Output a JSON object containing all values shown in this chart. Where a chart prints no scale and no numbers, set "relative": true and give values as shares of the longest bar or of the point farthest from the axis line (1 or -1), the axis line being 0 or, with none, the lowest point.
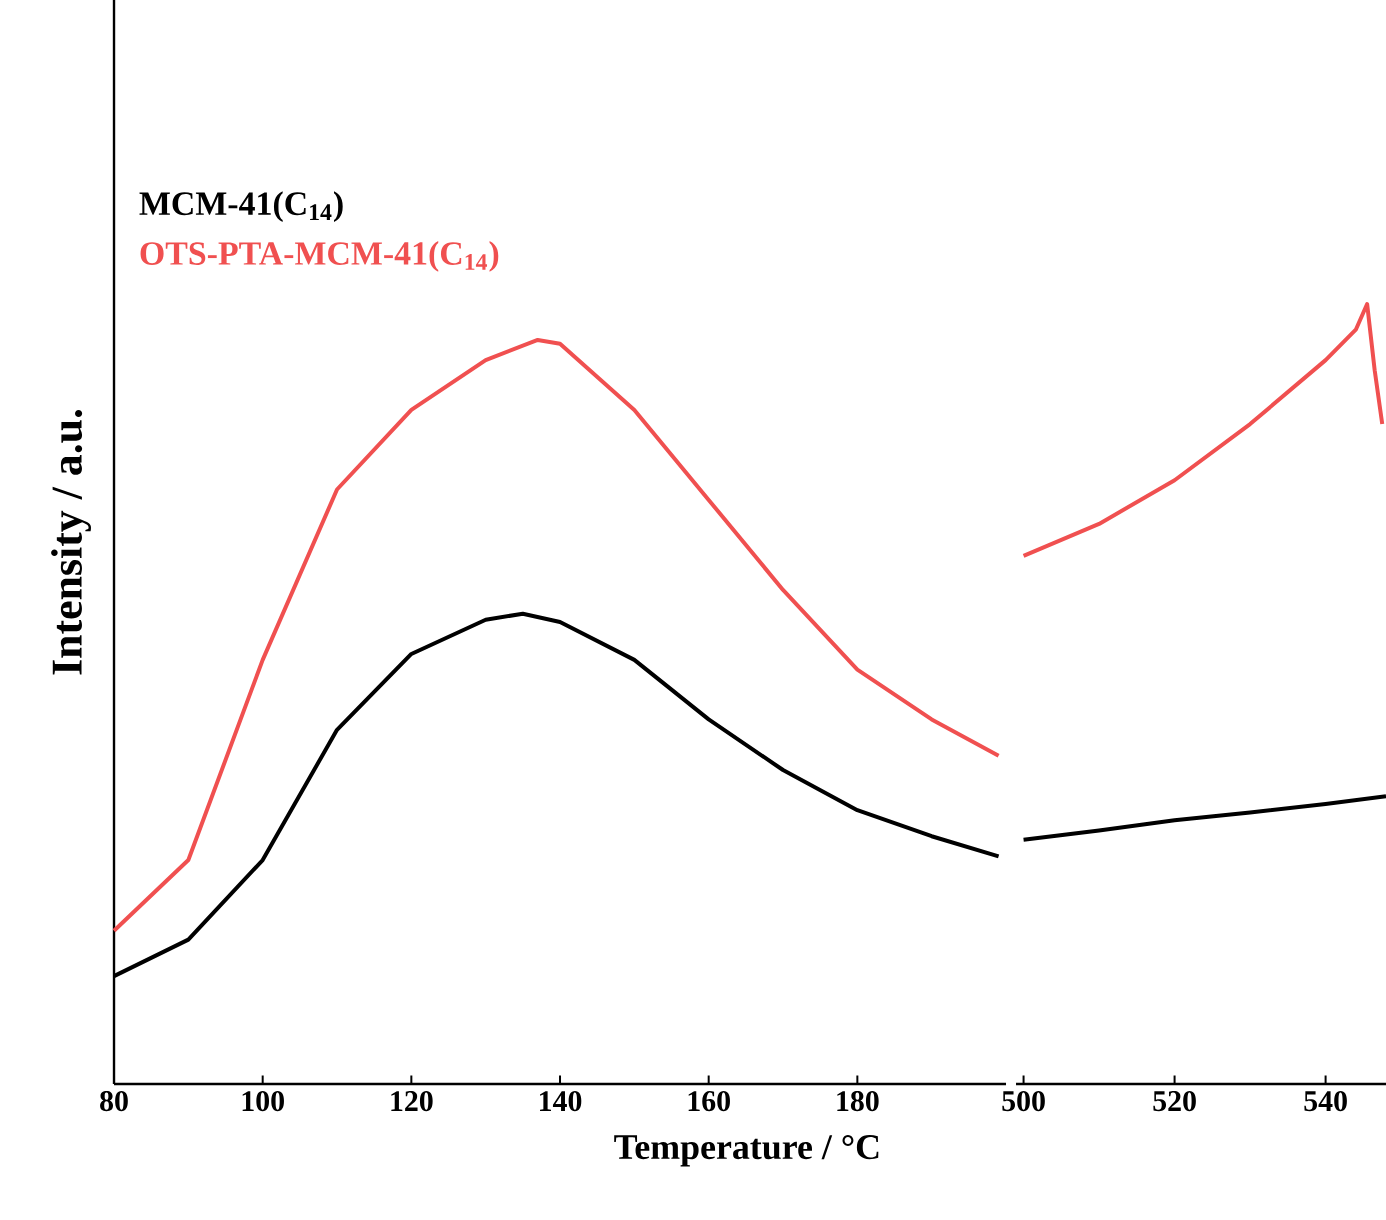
{
  "chart_data": [
    {
      "type": "line",
      "xlabel": "Temperature / °C",
      "ylabel": "Intensity / a.u.",
      "relative": true,
      "xlim": [
        80,
        200
      ],
      "xticks": [
        80,
        100,
        120,
        140,
        160,
        180
      ],
      "tick_labels": "x",
      "legend": "top left",
      "series": [
        {
          "name": "MCM-41(C$_{14}$)",
          "color": "#000000",
          "x": [
            80,
            90,
            100,
            110,
            120,
            130,
            135,
            140,
            150,
            160,
            170,
            180,
            190,
            199
          ],
          "values": [
            0.145,
            0.194,
            0.301,
            0.476,
            0.578,
            0.624,
            0.632,
            0.621,
            0.57,
            0.49,
            0.422,
            0.368,
            0.333,
            0.306
          ]
        },
        {
          "name": "OTS-PTA-MCM-41(C$_{14}$)",
          "color": "#f05050",
          "x": [
            80,
            90,
            100,
            110,
            120,
            130,
            137,
            140,
            150,
            160,
            170,
            180,
            190,
            199
          ],
          "values": [
            0.206,
            0.301,
            0.57,
            0.799,
            0.906,
            0.973,
            1.0,
            0.995,
            0.906,
            0.785,
            0.664,
            0.557,
            0.49,
            0.441
          ]
        }
      ]
    },
    {
      "type": "line",
      "relative": true,
      "xlim": [
        499,
        548
      ],
      "xticks": [
        500,
        520,
        540
      ],
      "tick_labels": "x",
      "series": [
        {
          "color": "#000000",
          "x": [
            500,
            510,
            520,
            530,
            540,
            548
          ],
          "values": [
            0.313,
            0.325,
            0.338,
            0.348,
            0.359,
            0.369
          ]
        },
        {
          "color": "#f05050",
          "x": [
            500,
            510,
            520,
            530,
            540,
            544,
            545.5,
            546.5,
            547.5
          ],
          "values": [
            0.677,
            0.718,
            0.774,
            0.846,
            0.928,
            0.967,
            1.0,
            0.915,
            0.846
          ]
        }
      ]
    }
  ]
}
